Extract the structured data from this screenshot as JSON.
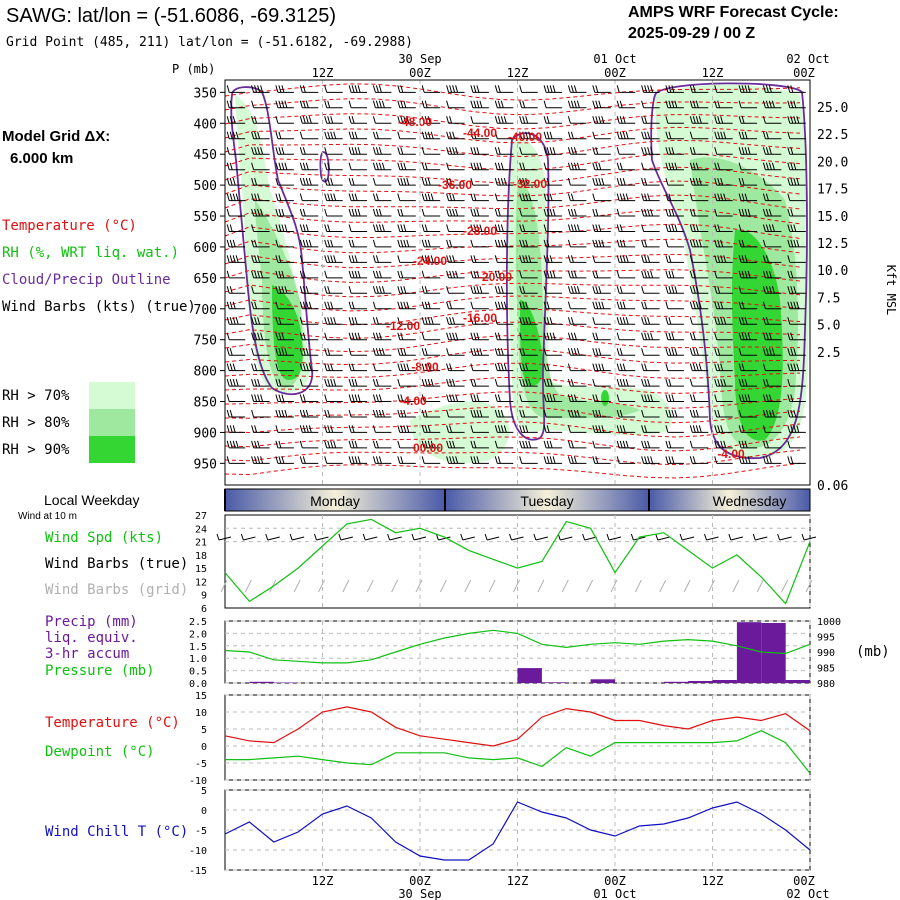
{
  "header": {
    "station_title": "SAWG:  lat/lon = (-51.6086, -69.3125)",
    "grid_point": "Grid Point (485, 211) lat/lon = (-51.6182, -69.2988)",
    "cycle_title": "AMPS WRF Forecast Cycle:",
    "cycle_value": "2025-09-29 / 00  Z"
  },
  "legend": {
    "model_grid_label": "Model Grid ΔX:",
    "model_grid_value": "6.000 km",
    "temperature": "Temperature (°C)",
    "rh": "RH (%, WRT liq. wat.)",
    "cloud": "Cloud/Precip Outline",
    "wind_barbs": "Wind Barbs (kts) (true)",
    "rh_bins": [
      "RH > 70%",
      "RH > 80%",
      "RH > 90%"
    ]
  },
  "colors": {
    "rh70": "#d4fbd4",
    "rh80": "#9fe89f",
    "rh90": "#34d634",
    "temperature": "#e01010",
    "dewpoint": "#10c010",
    "cloud": "#6a2c9a",
    "precip": "#6a1a9a",
    "windchill": "#1010c0",
    "wind": "#10c010",
    "grid_barb": "#b0b0b0"
  },
  "time_axis": {
    "top_dates": [
      "30 Sep",
      "01 Oct",
      "02 Oct"
    ],
    "tick_labels": [
      "12Z",
      "00Z",
      "12Z",
      "00Z",
      "12Z",
      "00Z"
    ],
    "bottom_dates": [
      "30 Sep",
      "01 Oct",
      "02 Oct"
    ]
  },
  "weekday": {
    "title": "Local Weekday",
    "subtitle": "Wind at 10 m",
    "days": [
      "Monday",
      "Tuesday",
      "Wednesday"
    ]
  },
  "labels": {
    "p_axis": "P (mb)",
    "kft_axis": "Kft MSL",
    "wind_spd": "Wind Spd (kts)",
    "wind_barbs_true": "Wind Barbs (true)",
    "wind_barbs_grid": "Wind Barbs (grid)",
    "precip_1": "Precip (mm)",
    "precip_2": "liq. equiv.",
    "precip_3": "3-hr accum",
    "pressure": "Pressure (mb)",
    "pressure_unit": "(mb)",
    "temperature": "Temperature (°C)",
    "dewpoint": "Dewpoint (°C)",
    "windchill": "Wind Chill T (°C)"
  },
  "chart_data": [
    {
      "type": "heatmap",
      "name": "cross-section",
      "y_pressure_ticks": [
        350,
        400,
        450,
        500,
        550,
        600,
        650,
        700,
        750,
        800,
        850,
        900,
        950
      ],
      "y_height_ticks": [
        "25.0",
        "22.5",
        "20.0",
        "17.5",
        "15.0",
        "12.5",
        "10.0",
        "7.5",
        "5.0",
        "2.5",
        "0.06"
      ],
      "temperature_contour_labels": [
        "-48.00",
        "-44.00",
        "-40.00",
        "-36.00",
        "-32.00",
        "-28.00",
        "-24.00",
        "-20.00",
        "-16.00",
        "-12.00",
        "-8.00",
        "-4.00",
        "00.00",
        "-4.00"
      ]
    },
    {
      "type": "line",
      "name": "wind-speed",
      "ylim": [
        6,
        27
      ],
      "yticks": [
        6,
        9,
        12,
        15,
        18,
        21,
        24,
        27
      ],
      "x_hours": [
        0,
        3,
        6,
        9,
        12,
        15,
        18,
        21,
        24,
        27,
        30,
        33,
        36,
        39,
        42,
        45,
        48,
        51,
        54,
        57,
        60,
        63,
        66,
        69,
        72
      ],
      "values": [
        14,
        7.5,
        11,
        15,
        20,
        25,
        26,
        23,
        24,
        22,
        19,
        17,
        15,
        16.5,
        25.5,
        24,
        14,
        22,
        23,
        19,
        15,
        18,
        13,
        7,
        21
      ]
    },
    {
      "type": "bar",
      "name": "precip-pressure",
      "precip_ylim": [
        0,
        2.5
      ],
      "precip_yticks": [
        "0.0",
        "0.5",
        "1.0",
        "1.5",
        "2.0",
        "2.5"
      ],
      "precip_x_hours": [
        6,
        9,
        39,
        42,
        48,
        57,
        60,
        63,
        66,
        69,
        72
      ],
      "precip_values": [
        0.05,
        0.02,
        0.6,
        0.03,
        0.15,
        0.05,
        0.08,
        0.12,
        2.45,
        2.42,
        0.12
      ],
      "pressure_ylim": [
        980,
        1000
      ],
      "pressure_yticks": [
        980,
        985,
        990,
        995,
        1000
      ],
      "pressure_x_hours": [
        0,
        3,
        6,
        9,
        12,
        15,
        18,
        21,
        24,
        27,
        30,
        33,
        36,
        39,
        42,
        45,
        48,
        51,
        54,
        57,
        60,
        63,
        66,
        69,
        72
      ],
      "pressure_values": [
        990.5,
        990,
        987.5,
        987,
        986.5,
        986.5,
        987.5,
        990,
        992.5,
        994.5,
        996,
        997,
        996,
        992.5,
        991.5,
        992.5,
        993,
        992.5,
        993.5,
        994,
        993.5,
        992,
        990,
        989.5,
        992.5
      ]
    },
    {
      "type": "line",
      "name": "temperature-dewpoint",
      "ylim": [
        -10,
        15
      ],
      "yticks": [
        -10,
        -5,
        0,
        5,
        10,
        15
      ],
      "x_hours": [
        0,
        3,
        6,
        9,
        12,
        15,
        18,
        21,
        24,
        27,
        30,
        33,
        36,
        39,
        42,
        45,
        48,
        51,
        54,
        57,
        60,
        63,
        66,
        69,
        72
      ],
      "series": [
        {
          "name": "Temperature (°C)",
          "values": [
            3,
            1.5,
            1,
            5,
            10,
            11.5,
            10,
            5.5,
            3,
            2,
            1,
            0,
            2,
            8.5,
            11,
            10,
            7.5,
            7.5,
            6,
            5,
            7.5,
            8.5,
            7.5,
            9.5,
            4.5
          ]
        },
        {
          "name": "Dewpoint (°C)",
          "values": [
            -4,
            -4,
            -3.5,
            -3,
            -4,
            -5,
            -5.5,
            -2,
            -2,
            -2,
            -3.5,
            -4,
            -3.5,
            -6,
            -0.5,
            -3,
            1,
            1,
            1,
            1,
            1,
            1.5,
            4.5,
            1,
            -8
          ]
        }
      ]
    },
    {
      "type": "line",
      "name": "wind-chill",
      "ylim": [
        -15,
        5
      ],
      "yticks": [
        -15,
        -10,
        -5,
        0,
        5
      ],
      "x_hours": [
        0,
        3,
        6,
        9,
        12,
        15,
        18,
        21,
        24,
        27,
        30,
        33,
        36,
        39,
        42,
        45,
        48,
        51,
        54,
        57,
        60,
        63,
        66,
        69,
        72
      ],
      "values": [
        -6,
        -3,
        -8,
        -5.5,
        -1,
        1,
        -2,
        -8,
        -11.5,
        -12.5,
        -12.5,
        -8.5,
        2,
        -0.5,
        -2,
        -5,
        -6.5,
        -4,
        -3.5,
        -2,
        0.5,
        2,
        -1,
        -5,
        -10
      ]
    }
  ]
}
